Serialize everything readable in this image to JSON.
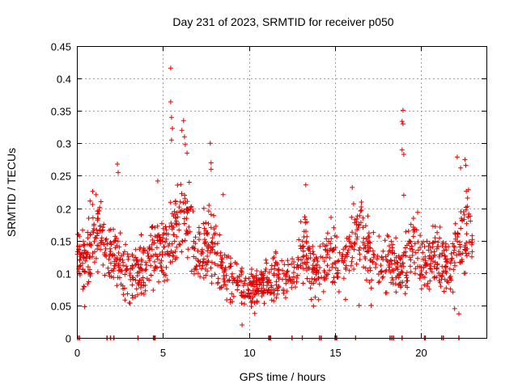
{
  "chart_data": {
    "type": "scatter",
    "title": "Day 231 of 2023, SRMTID for receiver p050",
    "xlabel": "GPS time / hours",
    "ylabel": "SRMTID / TECUs",
    "xlim": [
      0,
      23.8
    ],
    "ylim": [
      0,
      0.45
    ],
    "x_ticks": [
      0,
      5,
      10,
      15,
      20
    ],
    "x_tick_labels": [
      "0",
      "5",
      "10",
      "15",
      "20"
    ],
    "y_ticks": [
      0,
      0.05,
      0.1,
      0.15,
      0.2,
      0.25,
      0.3,
      0.35,
      0.4,
      0.45
    ],
    "y_tick_labels": [
      "0",
      "0.05",
      "0.1",
      "0.15",
      "0.2",
      "0.25",
      "0.3",
      "0.35",
      "0.4",
      "0.45"
    ],
    "grid": true,
    "marker": "plus",
    "color": "#e00000",
    "envelope": {
      "description": "approximate typical level of the scattered SRMTID points through the day",
      "x": [
        0,
        0.5,
        1.0,
        1.3,
        1.8,
        2.3,
        2.8,
        3.3,
        3.8,
        4.3,
        4.8,
        5.3,
        5.7,
        6.2,
        6.7,
        7.2,
        7.7,
        8.2,
        8.7,
        9.2,
        9.7,
        10.2,
        10.7,
        11.2,
        11.7,
        12.2,
        12.7,
        13.2,
        13.7,
        14.2,
        14.7,
        15.2,
        15.7,
        16.2,
        16.7,
        17.2,
        17.7,
        18.2,
        18.7,
        19.2,
        19.7,
        20.2,
        20.7,
        21.2,
        21.7,
        22.2,
        22.7,
        23.0
      ],
      "mean": [
        0.13,
        0.11,
        0.16,
        0.17,
        0.12,
        0.13,
        0.1,
        0.1,
        0.11,
        0.13,
        0.13,
        0.15,
        0.17,
        0.19,
        0.16,
        0.13,
        0.15,
        0.12,
        0.1,
        0.09,
        0.08,
        0.075,
        0.08,
        0.09,
        0.095,
        0.095,
        0.1,
        0.14,
        0.1,
        0.11,
        0.13,
        0.11,
        0.12,
        0.16,
        0.15,
        0.12,
        0.1,
        0.12,
        0.09,
        0.13,
        0.14,
        0.11,
        0.12,
        0.12,
        0.1,
        0.15,
        0.17,
        0.15
      ],
      "spread": [
        0.035,
        0.04,
        0.05,
        0.05,
        0.035,
        0.045,
        0.035,
        0.035,
        0.04,
        0.045,
        0.045,
        0.05,
        0.05,
        0.055,
        0.05,
        0.04,
        0.045,
        0.04,
        0.035,
        0.03,
        0.025,
        0.025,
        0.025,
        0.03,
        0.03,
        0.03,
        0.035,
        0.045,
        0.035,
        0.04,
        0.045,
        0.04,
        0.04,
        0.05,
        0.045,
        0.04,
        0.035,
        0.04,
        0.035,
        0.045,
        0.045,
        0.035,
        0.04,
        0.04,
        0.035,
        0.05,
        0.05,
        0.03
      ],
      "point_count": 1400,
      "x_end": 23.0
    },
    "notable_points": [
      {
        "x": 5.45,
        "y": 0.416
      },
      {
        "x": 5.45,
        "y": 0.364
      },
      {
        "x": 5.5,
        "y": 0.34
      },
      {
        "x": 5.55,
        "y": 0.323
      },
      {
        "x": 5.5,
        "y": 0.305
      },
      {
        "x": 6.1,
        "y": 0.32
      },
      {
        "x": 6.25,
        "y": 0.31
      },
      {
        "x": 6.3,
        "y": 0.298
      },
      {
        "x": 6.4,
        "y": 0.285
      },
      {
        "x": 6.2,
        "y": 0.335
      },
      {
        "x": 7.75,
        "y": 0.3
      },
      {
        "x": 7.8,
        "y": 0.27
      },
      {
        "x": 7.8,
        "y": 0.26
      },
      {
        "x": 8.5,
        "y": 0.221
      },
      {
        "x": 18.95,
        "y": 0.351
      },
      {
        "x": 18.9,
        "y": 0.334
      },
      {
        "x": 18.95,
        "y": 0.33
      },
      {
        "x": 18.9,
        "y": 0.29
      },
      {
        "x": 19.0,
        "y": 0.283
      },
      {
        "x": 19.0,
        "y": 0.22
      },
      {
        "x": 22.1,
        "y": 0.279
      },
      {
        "x": 22.3,
        "y": 0.262
      },
      {
        "x": 22.55,
        "y": 0.275
      },
      {
        "x": 22.6,
        "y": 0.266
      },
      {
        "x": 2.35,
        "y": 0.268
      },
      {
        "x": 2.4,
        "y": 0.255
      },
      {
        "x": 4.7,
        "y": 0.242
      },
      {
        "x": 13.3,
        "y": 0.236
      },
      {
        "x": 16.0,
        "y": 0.232
      },
      {
        "x": 0.45,
        "y": 0.048
      },
      {
        "x": 9.6,
        "y": 0.02
      },
      {
        "x": 22.2,
        "y": 0.037
      },
      {
        "x": 21.95,
        "y": 0.045
      },
      {
        "x": 17.1,
        "y": 0.05
      },
      {
        "x": 16.4,
        "y": 0.05
      }
    ],
    "zero_markers_x": [
      0.05,
      0.15,
      1.75,
      1.95,
      2.15,
      3.55,
      4.45,
      4.5,
      4.55,
      11.15,
      11.2,
      11.25,
      12.5,
      13.1,
      14.1,
      14.2,
      15.0,
      15.05,
      15.1,
      16.2,
      18.2,
      18.3,
      18.4,
      18.9,
      20.2,
      20.25,
      21.2,
      21.3,
      22.2
    ]
  }
}
